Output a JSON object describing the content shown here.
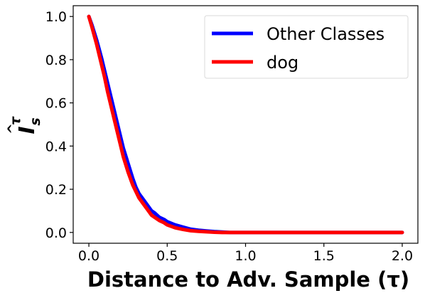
{
  "chart_data": {
    "type": "line",
    "xlabel": "Distance to Adv. Sample (τ)",
    "ylabel": {
      "main": "I",
      "hat": "^",
      "superscript": "τ",
      "subscript": "s"
    },
    "xlim": [
      -0.1,
      2.1
    ],
    "ylim": [
      -0.05,
      1.05
    ],
    "xticks": [
      0.0,
      0.5,
      1.0,
      1.5,
      2.0
    ],
    "xtick_labels": [
      "0.0",
      "0.5",
      "1.0",
      "1.5",
      "2.0"
    ],
    "yticks": [
      0.0,
      0.2,
      0.4,
      0.6,
      0.8,
      1.0
    ],
    "ytick_labels": [
      "0.0",
      "0.2",
      "0.4",
      "0.6",
      "0.8",
      "1.0"
    ],
    "grid": false,
    "legend_position": "top-right",
    "series": [
      {
        "name": "Other Classes",
        "color": "#0000ff",
        "x": [
          0.0,
          0.02,
          0.05,
          0.08,
          0.1,
          0.12,
          0.15,
          0.18,
          0.2,
          0.22,
          0.25,
          0.28,
          0.3,
          0.32,
          0.35,
          0.38,
          0.4,
          0.42,
          0.45,
          0.48,
          0.5,
          0.55,
          0.6,
          0.65,
          0.7,
          0.75,
          0.8,
          0.85,
          0.9,
          1.0,
          1.5,
          2.0
        ],
        "y": [
          1.0,
          0.96,
          0.89,
          0.81,
          0.75,
          0.69,
          0.6,
          0.51,
          0.45,
          0.39,
          0.32,
          0.25,
          0.21,
          0.18,
          0.15,
          0.12,
          0.1,
          0.09,
          0.07,
          0.06,
          0.05,
          0.035,
          0.025,
          0.015,
          0.01,
          0.007,
          0.004,
          0.002,
          0.0,
          0.0,
          0.0,
          0.0
        ]
      },
      {
        "name": "dog",
        "color": "#ff0000",
        "x": [
          0.0,
          0.02,
          0.05,
          0.08,
          0.1,
          0.12,
          0.15,
          0.18,
          0.2,
          0.22,
          0.25,
          0.28,
          0.3,
          0.32,
          0.35,
          0.38,
          0.4,
          0.42,
          0.45,
          0.48,
          0.5,
          0.55,
          0.6,
          0.65,
          0.7,
          0.75,
          0.8,
          0.85,
          0.9,
          1.0,
          1.5,
          2.0
        ],
        "y": [
          1.0,
          0.95,
          0.87,
          0.78,
          0.72,
          0.65,
          0.56,
          0.47,
          0.41,
          0.35,
          0.28,
          0.22,
          0.19,
          0.16,
          0.13,
          0.1,
          0.08,
          0.07,
          0.055,
          0.045,
          0.035,
          0.022,
          0.014,
          0.008,
          0.005,
          0.003,
          0.001,
          0.0,
          0.0,
          0.0,
          0.0,
          0.0
        ]
      }
    ]
  }
}
